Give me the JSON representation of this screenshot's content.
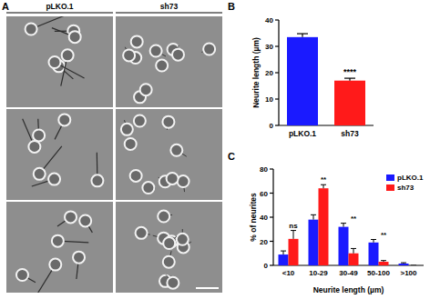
{
  "panel_labels": [
    "A",
    "B",
    "C"
  ],
  "images": {
    "columns": [
      "pLKO.1",
      "sh73"
    ]
  },
  "chart_data": [
    {
      "type": "bar",
      "y_label": "Neurite length (µm)",
      "categories": [
        "pLKO.1",
        "sh73"
      ],
      "values": [
        33.5,
        17
      ],
      "errors": [
        1.3,
        0.9
      ],
      "colors": [
        "#1a1aff",
        "#ff1a1a"
      ],
      "ylim": [
        0,
        40
      ],
      "yticks": [
        0,
        10,
        20,
        30,
        40
      ],
      "annotations": [
        {
          "text": "****",
          "category": 1
        }
      ]
    },
    {
      "type": "bar",
      "x_label": "Neurite length (µm)",
      "y_label": "% of neurites",
      "categories": [
        "<10",
        "10-29",
        "30-49",
        "50-100",
        ">100"
      ],
      "series": [
        {
          "name": "pLKO.1",
          "color": "#1a1aff",
          "values": [
            9,
            38,
            32,
            19,
            1.5
          ],
          "errors": [
            3,
            4,
            3,
            2.5,
            0.7
          ]
        },
        {
          "name": "sh73",
          "color": "#ff1a1a",
          "values": [
            22,
            64,
            10,
            3,
            0
          ],
          "errors": [
            7,
            3,
            4,
            1,
            0
          ]
        }
      ],
      "ylim": [
        0,
        80
      ],
      "yticks": [
        0,
        20,
        40,
        60,
        80
      ],
      "legend": "top-right",
      "annotations": [
        {
          "text": "ns",
          "category": 0
        },
        {
          "text": "**",
          "category": 1
        },
        {
          "text": "**",
          "category": 2
        },
        {
          "text": "**",
          "category": 3
        }
      ]
    }
  ]
}
